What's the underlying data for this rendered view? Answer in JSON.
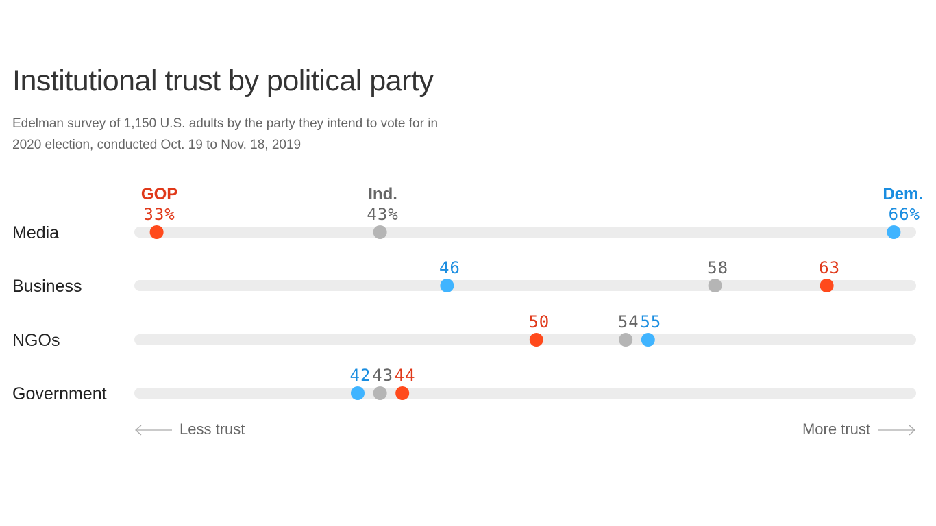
{
  "chart_data": {
    "type": "dot",
    "title": "Institutional trust by political party",
    "subtitle": "Edelman survey of 1,150 U.S. adults by the party they intend to vote for in 2020 election, conducted Oct. 19 to Nov. 18, 2019",
    "xlim": [
      32,
      67
    ],
    "grid": false,
    "series": [
      {
        "name": "GOP",
        "key": "gop",
        "dot_color": "#ff4a1c",
        "text_color": "#e0391a"
      },
      {
        "name": "Ind.",
        "key": "ind",
        "dot_color": "#b5b5b5",
        "text_color": "#666666"
      },
      {
        "name": "Dem.",
        "key": "dem",
        "dot_color": "#40b4ff",
        "text_color": "#1a8de0"
      }
    ],
    "categories": [
      "Media",
      "Business",
      "NGOs",
      "Government"
    ],
    "rows": [
      {
        "category": "Media",
        "gop": 33,
        "ind": 43,
        "dem": 66,
        "labels": {
          "gop": "33%",
          "ind": "43%",
          "dem": "66%"
        }
      },
      {
        "category": "Business",
        "gop": 63,
        "ind": 58,
        "dem": 46,
        "labels": {
          "gop": "63",
          "ind": "58",
          "dem": "46"
        }
      },
      {
        "category": "NGOs",
        "gop": 50,
        "ind": 54,
        "dem": 55,
        "labels": {
          "gop": "50",
          "ind": "54",
          "dem": "55"
        }
      },
      {
        "category": "Government",
        "gop": 44,
        "ind": 43,
        "dem": 42,
        "labels": {
          "gop": "44",
          "ind": "43",
          "dem": "42"
        }
      }
    ],
    "axis_labels": {
      "left": "Less trust",
      "right": "More trust"
    },
    "track_color": "#ececec"
  }
}
